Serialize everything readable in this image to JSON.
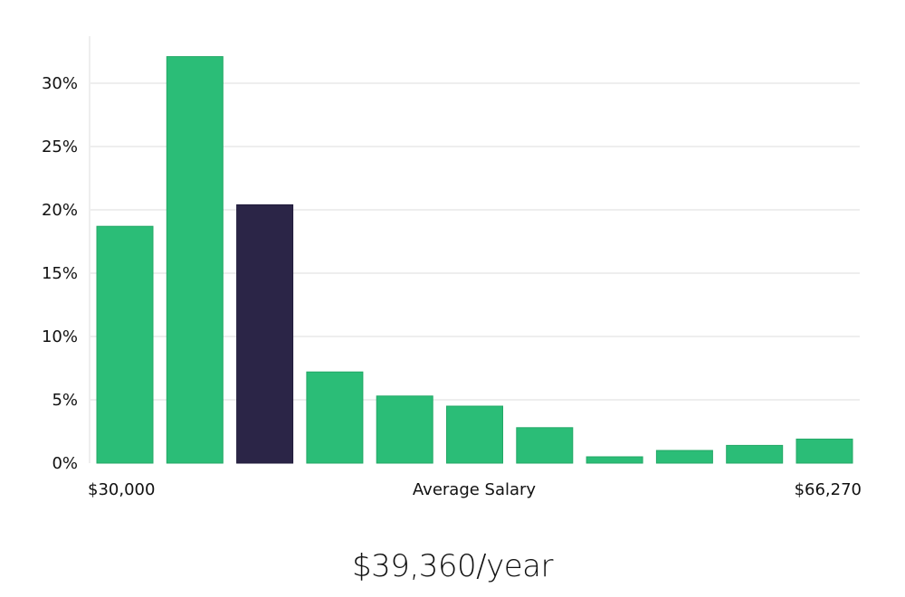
{
  "chart_data": {
    "type": "bar",
    "xlabel": "Average Salary",
    "x_min_label": "$30,000",
    "x_max_label": "$66,270",
    "yticks": [
      "0%",
      "5%",
      "10%",
      "15%",
      "20%",
      "25%",
      "30%"
    ],
    "ylim": [
      0,
      33.5
    ],
    "values": [
      18.7,
      32.1,
      20.4,
      7.2,
      5.3,
      4.5,
      2.8,
      0.5,
      1.0,
      1.4,
      1.9
    ],
    "highlight_index": 2,
    "colors": {
      "bar": "#2bbd77",
      "highlight": "#2b2547",
      "grid": "#dcdcdc"
    },
    "grid": true
  },
  "salary_caption": "$39,360/year"
}
